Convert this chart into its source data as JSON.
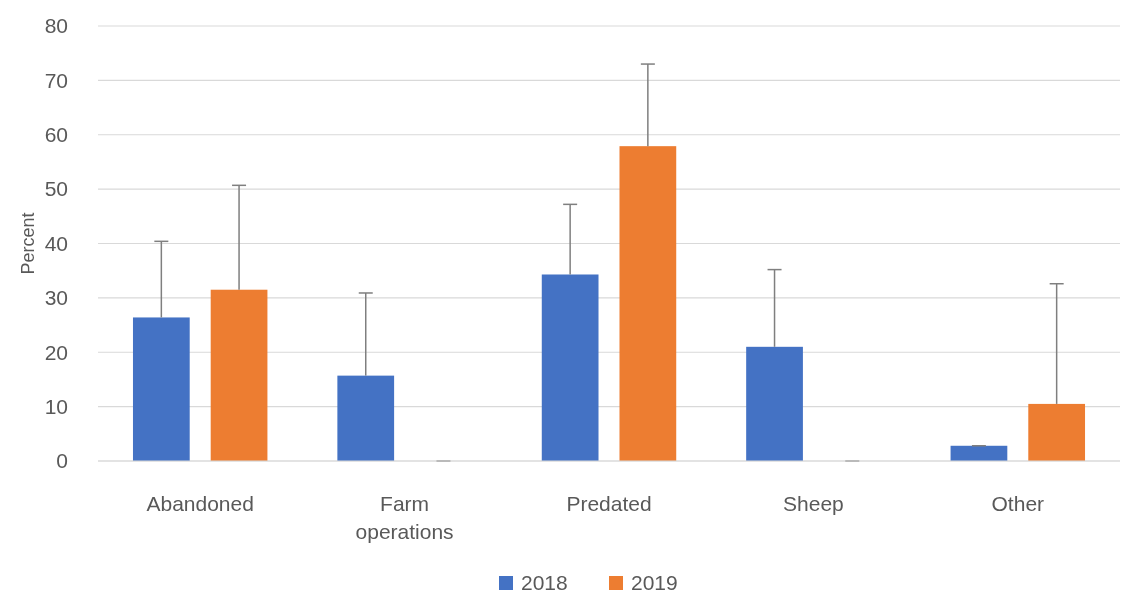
{
  "chart_data": {
    "type": "bar",
    "ylabel": "Percent",
    "categories": [
      "Abandoned",
      "Farm operations",
      "Predated",
      "Sheep",
      "Other"
    ],
    "series": [
      {
        "name": "2018",
        "color": "#4472c4",
        "values": [
          26.4,
          15.7,
          34.3,
          21.0,
          2.8
        ],
        "errors": [
          [
            26.4,
            40.4
          ],
          [
            15.7,
            30.9
          ],
          [
            34.3,
            47.2
          ],
          [
            21.0,
            35.2
          ],
          [
            2.8,
            2.8
          ]
        ]
      },
      {
        "name": "2019",
        "color": "#ed7d31",
        "values": [
          31.5,
          0,
          57.9,
          0,
          10.5
        ],
        "errors": [
          [
            31.5,
            50.7
          ],
          [
            0,
            0
          ],
          [
            57.9,
            73.0
          ],
          [
            0,
            0
          ],
          [
            10.5,
            32.6
          ]
        ]
      }
    ],
    "ylim": [
      0,
      80
    ],
    "yticks": [
      0,
      10,
      20,
      30,
      40,
      50,
      60,
      70,
      80
    ],
    "grid": "y",
    "legend": "bottom"
  }
}
